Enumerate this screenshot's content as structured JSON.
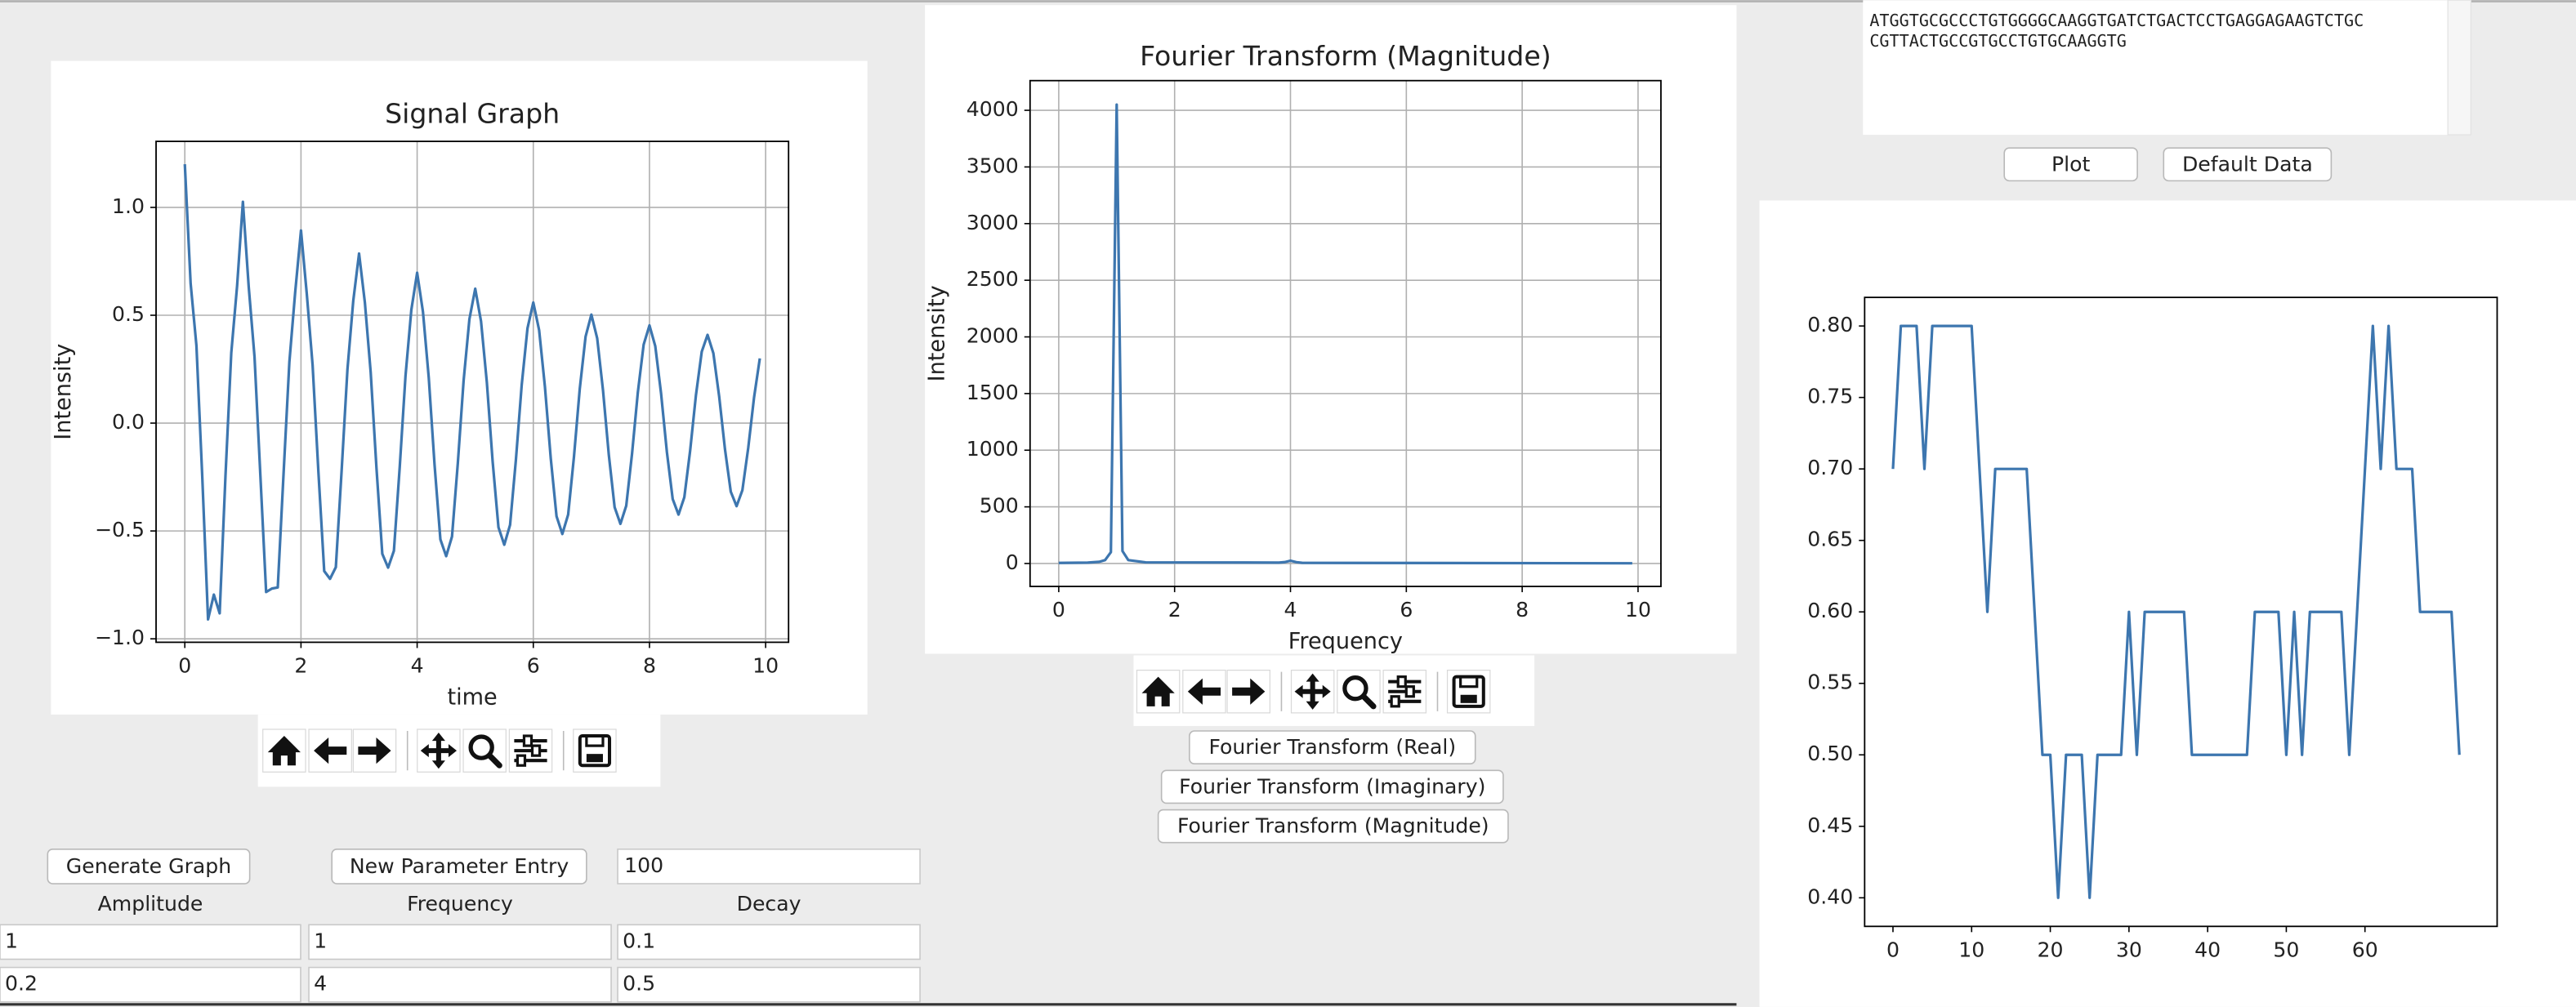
{
  "sequence_lines": [
    "ATGGTGCGCCCTGTGGGGCAAGGTGATCTGACTCCTGAGGAGAAGTCTGC",
    "CGTTACTGCCGTGCCTGTGCAAGGTG"
  ],
  "controls": {
    "plot": "Plot",
    "default_data": "Default Data",
    "fft_buttons": [
      "Fourier Transform (Real)",
      "Fourier Transform (Imaginary)",
      "Fourier Transform (Magnitude)"
    ],
    "generate": "Generate Graph",
    "new_entry": "New Parameter Entry",
    "points": "100",
    "param_headers": [
      "Amplitude",
      "Frequency",
      "Decay"
    ],
    "param_rows": [
      [
        "1",
        "1",
        "0.1"
      ],
      [
        "0.2",
        "4",
        "0.5"
      ]
    ]
  },
  "chart_data": [
    {
      "type": "line",
      "title": "Signal Graph",
      "x_label": "time",
      "y_label": "Intensity",
      "color": "#3d76af",
      "grid": true,
      "x": [
        0,
        0.1,
        0.2,
        0.3,
        0.4,
        0.5,
        0.6,
        0.7,
        0.8,
        0.9,
        1,
        1.1,
        1.2,
        1.3,
        1.4,
        1.5,
        1.6,
        1.7,
        1.8,
        1.9,
        2,
        2.1,
        2.2,
        2.3,
        2.4,
        2.5,
        2.6,
        2.7,
        2.8,
        2.9,
        3,
        3.1,
        3.2,
        3.3,
        3.4,
        3.5,
        3.6,
        3.7,
        3.8,
        3.9,
        4,
        4.1,
        4.2,
        4.3,
        4.4,
        4.5,
        4.6,
        4.7,
        4.8,
        4.9,
        5,
        5.1,
        5.2,
        5.3,
        5.4,
        5.5,
        5.6,
        5.7,
        5.8,
        5.9,
        6,
        6.1,
        6.2,
        6.3,
        6.4,
        6.5,
        6.6,
        6.7,
        6.8,
        6.9,
        7,
        7.1,
        7.2,
        7.3,
        7.4,
        7.5,
        7.6,
        7.7,
        7.8,
        7.9,
        8,
        8.1,
        8.2,
        8.3,
        8.4,
        8.5,
        8.6,
        8.7,
        8.8,
        8.9,
        9,
        9.1,
        9.2,
        9.3,
        9.4,
        9.5,
        9.6,
        9.7,
        9.8,
        9.9
      ],
      "values": [
        1.2,
        0.647,
        0.359,
        -0.247,
        -0.91,
        -0.795,
        -0.882,
        -0.244,
        0.326,
        0.636,
        1.026,
        0.632,
        0.308,
        -0.239,
        -0.783,
        -0.767,
        -0.762,
        -0.235,
        0.283,
        0.606,
        0.893,
        0.599,
        0.269,
        -0.226,
        -0.686,
        -0.722,
        -0.668,
        -0.22,
        0.249,
        0.567,
        0.786,
        0.559,
        0.236,
        -0.21,
        -0.606,
        -0.67,
        -0.592,
        -0.204,
        0.22,
        0.525,
        0.697,
        0.516,
        0.211,
        -0.194,
        -0.539,
        -0.617,
        -0.526,
        -0.187,
        0.197,
        0.482,
        0.623,
        0.472,
        0.189,
        -0.178,
        -0.483,
        -0.564,
        -0.472,
        -0.171,
        0.176,
        0.44,
        0.559,
        0.431,
        0.169,
        -0.162,
        -0.432,
        -0.514,
        -0.424,
        -0.156,
        0.159,
        0.401,
        0.503,
        0.393,
        0.152,
        -0.147,
        -0.39,
        -0.467,
        -0.383,
        -0.142,
        0.143,
        0.364,
        0.453,
        0.357,
        0.137,
        -0.134,
        -0.352,
        -0.424,
        -0.344,
        -0.128,
        0.129,
        0.331,
        0.409,
        0.324,
        0.124,
        -0.121,
        -0.318,
        -0.385,
        -0.311,
        -0.116,
        0.117,
        0.3
      ],
      "xlim": [
        -0.495,
        10.395
      ],
      "xticks": [
        0,
        2,
        4,
        6,
        8,
        10
      ],
      "ylim": [
        -1.016,
        1.306
      ],
      "yticks": [
        {
          "value": -1,
          "label": "−1.0"
        },
        {
          "value": -0.5,
          "label": "−0.5"
        },
        {
          "value": 0,
          "label": "0.0"
        },
        {
          "value": 0.5,
          "label": "0.5"
        },
        {
          "value": 1,
          "label": "1.0"
        }
      ]
    },
    {
      "type": "line",
      "title": "Fourier Transform (Magnitude)",
      "x_label": "Frequency",
      "y_label": "Intensity",
      "color": "#3d76af",
      "grid": true,
      "x": [
        0,
        0.5,
        0.7,
        0.8,
        0.9,
        1,
        1.1,
        1.2,
        1.5,
        3.8,
        3.9,
        4,
        4.1,
        4.2,
        9.9
      ],
      "values": [
        5,
        8,
        15,
        30,
        100,
        4050,
        110,
        30,
        10,
        8,
        12,
        25,
        12,
        6,
        2
      ],
      "xlim": [
        -0.495,
        10.395
      ],
      "xticks": [
        0,
        2,
        4,
        6,
        8,
        10
      ],
      "ylim": [
        -202.5,
        4262
      ],
      "yticks": [
        0,
        500,
        1000,
        1500,
        2000,
        2500,
        3000,
        3500,
        4000
      ]
    },
    {
      "type": "line",
      "color": "#3d76af",
      "grid": false,
      "x": [
        0,
        1,
        2,
        3,
        4,
        5,
        6,
        7,
        8,
        9,
        10,
        11,
        12,
        13,
        14,
        15,
        16,
        17,
        18,
        19,
        20,
        21,
        22,
        23,
        24,
        25,
        26,
        27,
        28,
        29,
        30,
        31,
        32,
        33,
        34,
        35,
        36,
        37,
        38,
        39,
        40,
        41,
        42,
        43,
        44,
        45,
        46,
        47,
        48,
        49,
        50,
        51,
        52,
        53,
        54,
        55,
        56,
        57,
        58,
        59,
        60,
        61,
        62,
        63,
        64,
        65,
        66,
        67,
        68,
        69,
        70,
        71,
        72
      ],
      "values": [
        0.7,
        0.8,
        0.8,
        0.8,
        0.7,
        0.8,
        0.8,
        0.8,
        0.8,
        0.8,
        0.8,
        0.7,
        0.6,
        0.7,
        0.7,
        0.7,
        0.7,
        0.7,
        0.6,
        0.5,
        0.5,
        0.4,
        0.5,
        0.5,
        0.5,
        0.4,
        0.5,
        0.5,
        0.5,
        0.5,
        0.6,
        0.5,
        0.6,
        0.6,
        0.6,
        0.6,
        0.6,
        0.6,
        0.5,
        0.5,
        0.5,
        0.5,
        0.5,
        0.5,
        0.5,
        0.5,
        0.6,
        0.6,
        0.6,
        0.6,
        0.5,
        0.6,
        0.5,
        0.6,
        0.6,
        0.6,
        0.6,
        0.6,
        0.5,
        0.6,
        0.7,
        0.8,
        0.7,
        0.8,
        0.7,
        0.7,
        0.7,
        0.6,
        0.6,
        0.6,
        0.6,
        0.6,
        0.5
      ],
      "xlim": [
        -3.6,
        76.8
      ],
      "xticks": [
        0,
        10,
        20,
        30,
        40,
        50,
        60
      ],
      "ylim": [
        0.38,
        0.82
      ],
      "yticks": [
        {
          "value": 0.4,
          "label": "0.40"
        },
        0.45,
        {
          "value": 0.5,
          "label": "0.50"
        },
        0.55,
        {
          "value": 0.6,
          "label": "0.60"
        },
        0.65,
        {
          "value": 0.7,
          "label": "0.70"
        },
        0.75,
        {
          "value": 0.8,
          "label": "0.80"
        }
      ]
    }
  ]
}
